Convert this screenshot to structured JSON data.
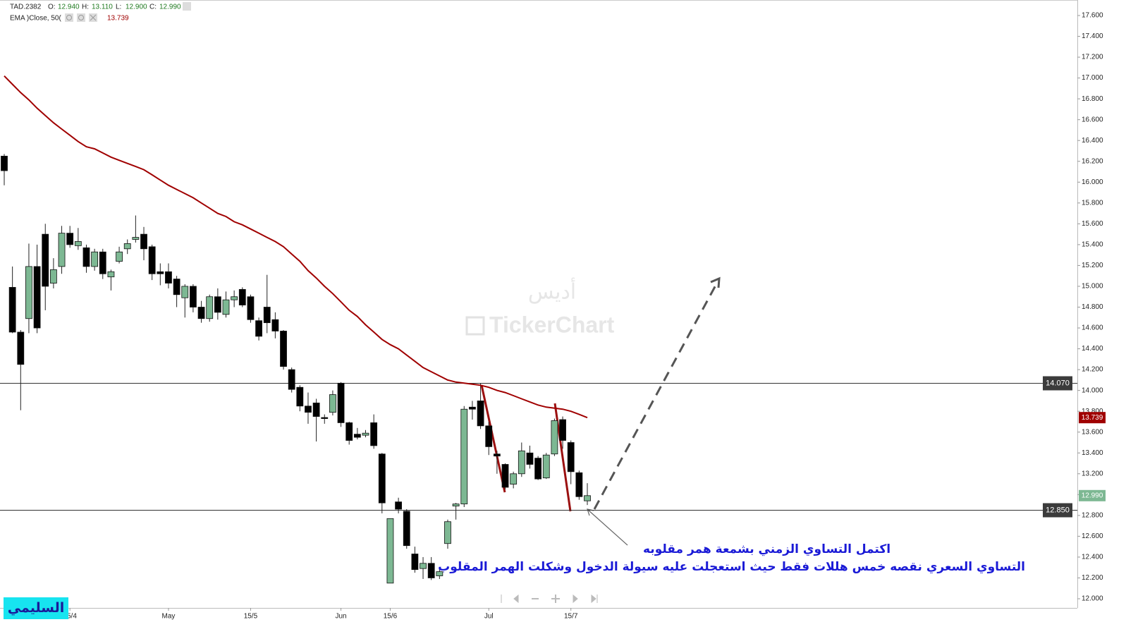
{
  "chart_data": {
    "type": "candlestick",
    "symbol": "TAD.2382",
    "legend_line": [
      {
        "key": "O:",
        "value": "12.940"
      },
      {
        "key": "H:",
        "value": "13.110"
      },
      {
        "key": "L:",
        "value": "12.900"
      },
      {
        "key": "C:",
        "value": "12.990"
      }
    ],
    "categories": [
      null,
      null,
      null,
      null,
      null,
      null,
      null,
      null,
      "15/4",
      null,
      null,
      null,
      null,
      null,
      null,
      null,
      null,
      null,
      null,
      null,
      "May",
      null,
      null,
      null,
      null,
      null,
      null,
      null,
      null,
      null,
      "15/5",
      null,
      null,
      null,
      null,
      null,
      null,
      null,
      null,
      null,
      null,
      "Jun",
      null,
      null,
      null,
      null,
      null,
      "15/6",
      null,
      null,
      null,
      null,
      null,
      null,
      null,
      null,
      null,
      null,
      null,
      "Jul",
      null,
      null,
      null,
      null,
      null,
      null,
      null,
      null,
      null,
      "15/7",
      null,
      null
    ],
    "open": [
      16.25,
      14.99,
      14.56,
      14.69,
      15.19,
      15.5,
      15.03,
      15.19,
      15.51,
      15.39,
      15.37,
      15.19,
      15.33,
      15.09,
      15.24,
      15.36,
      15.45,
      15.5,
      15.38,
      15.14,
      15.14,
      15.07,
      14.89,
      15.0,
      14.8,
      14.69,
      14.9,
      14.73,
      14.87,
      14.97,
      14.9,
      14.67,
      14.8,
      14.68,
      14.57,
      14.2,
      14.03,
      13.85,
      13.88,
      13.74,
      13.79,
      14.07,
      13.69,
      13.58,
      13.57,
      13.69,
      13.39,
      12.15,
      12.93,
      12.84,
      12.43,
      12.29,
      12.34,
      12.22,
      12.53,
      12.89,
      12.91,
      13.84,
      13.9,
      13.66,
      13.39,
      13.29,
      13.1,
      13.2,
      13.4,
      13.35,
      13.16,
      13.39,
      13.72,
      13.5,
      13.21,
      12.94
    ],
    "high": [
      16.27,
      15.19,
      14.58,
      15.41,
      15.4,
      15.6,
      15.27,
      15.58,
      15.58,
      15.56,
      15.4,
      15.36,
      15.36,
      15.16,
      15.38,
      15.45,
      15.68,
      15.57,
      15.4,
      15.22,
      15.22,
      15.1,
      15.02,
      15.02,
      14.86,
      14.92,
      14.98,
      14.95,
      14.96,
      14.99,
      14.92,
      14.7,
      15.11,
      14.75,
      14.58,
      14.22,
      14.05,
      13.98,
      13.92,
      13.77,
      14.0,
      14.08,
      13.7,
      13.64,
      13.62,
      13.77,
      13.4,
      12.77,
      12.97,
      12.86,
      12.5,
      12.4,
      12.4,
      12.3,
      12.76,
      12.92,
      13.85,
      13.9,
      14.07,
      13.7,
      13.42,
      13.3,
      13.22,
      13.5,
      13.47,
      13.37,
      13.4,
      13.73,
      13.75,
      13.52,
      13.23,
      13.11
    ],
    "low": [
      15.97,
      14.55,
      13.81,
      14.55,
      14.55,
      14.77,
      14.98,
      15.12,
      15.37,
      15.35,
      15.13,
      15.15,
      15.07,
      14.96,
      15.22,
      15.31,
      15.42,
      15.25,
      15.06,
      15.01,
      14.98,
      14.8,
      14.7,
      14.75,
      14.65,
      14.66,
      14.68,
      14.7,
      14.8,
      14.8,
      14.65,
      14.48,
      14.55,
      14.5,
      14.2,
      13.98,
      13.8,
      13.68,
      13.51,
      13.68,
      13.76,
      13.65,
      13.48,
      13.53,
      13.55,
      13.44,
      12.82,
      12.15,
      12.82,
      12.48,
      12.25,
      12.19,
      12.18,
      12.19,
      12.48,
      12.76,
      12.88,
      13.72,
      13.63,
      13.38,
      13.2,
      13.05,
      13.06,
      13.17,
      13.25,
      13.14,
      13.15,
      13.37,
      13.44,
      13.1,
      12.95,
      12.9
    ],
    "close": [
      16.11,
      14.56,
      14.25,
      15.19,
      14.6,
      15.0,
      15.16,
      15.51,
      15.4,
      15.43,
      15.19,
      15.33,
      15.12,
      15.14,
      15.33,
      15.41,
      15.47,
      15.36,
      15.12,
      15.12,
      15.03,
      14.92,
      15.0,
      14.8,
      14.69,
      14.9,
      14.75,
      14.87,
      14.9,
      14.82,
      14.68,
      14.52,
      14.65,
      14.57,
      14.23,
      14.01,
      13.85,
      13.79,
      13.75,
      13.73,
      13.96,
      13.69,
      13.52,
      13.55,
      13.59,
      13.47,
      12.92,
      12.77,
      12.86,
      12.51,
      12.28,
      12.34,
      12.2,
      12.26,
      12.74,
      12.91,
      13.82,
      13.82,
      13.66,
      13.46,
      13.37,
      13.07,
      13.2,
      13.42,
      13.29,
      13.15,
      13.38,
      13.71,
      13.52,
      13.22,
      12.98,
      12.99
    ],
    "up_color": "#7db893",
    "down_color": "#000000",
    "ema": {
      "name": "EMA  )Close, 50(",
      "color": "#a00000",
      "last_label": "13.739",
      "values": [
        17.02,
        16.94,
        16.86,
        16.79,
        16.71,
        16.64,
        16.57,
        16.51,
        16.45,
        16.39,
        16.34,
        16.32,
        16.28,
        16.24,
        16.21,
        16.18,
        16.15,
        16.12,
        16.07,
        16.02,
        15.97,
        15.93,
        15.89,
        15.85,
        15.8,
        15.75,
        15.7,
        15.67,
        15.62,
        15.59,
        15.55,
        15.51,
        15.47,
        15.43,
        15.38,
        15.31,
        15.24,
        15.15,
        15.08,
        15.0,
        14.93,
        14.85,
        14.77,
        14.71,
        14.63,
        14.56,
        14.49,
        14.44,
        14.4,
        14.34,
        14.28,
        14.22,
        14.18,
        14.14,
        14.1,
        14.08,
        14.07,
        14.06,
        14.05,
        14.03,
        14.0,
        13.98,
        13.95,
        13.92,
        13.89,
        13.86,
        13.84,
        13.83,
        13.82,
        13.8,
        13.77,
        13.739
      ]
    },
    "last_price": {
      "value": 12.99,
      "label": "12.990"
    },
    "levels": [
      {
        "value": 14.07,
        "label": "14.070"
      },
      {
        "value": 12.85,
        "label": "12.850"
      }
    ],
    "ylim": [
      12.0,
      17.6
    ],
    "yticks": [
      {
        "value": 12.0,
        "label": "12.000"
      },
      {
        "value": 12.2,
        "label": "12.200"
      },
      {
        "value": 12.4,
        "label": "12.400"
      },
      {
        "value": 12.6,
        "label": "12.600"
      },
      {
        "value": 12.8,
        "label": "12.800"
      },
      {
        "value": 13.0,
        "label": "13.000"
      },
      {
        "value": 13.2,
        "label": "13.200"
      },
      {
        "value": 13.4,
        "label": "13.400"
      },
      {
        "value": 13.6,
        "label": "13.600"
      },
      {
        "value": 13.8,
        "label": "13.800"
      },
      {
        "value": 14.0,
        "label": "14.000"
      },
      {
        "value": 14.2,
        "label": "14.200"
      },
      {
        "value": 14.4,
        "label": "14.400"
      },
      {
        "value": 14.6,
        "label": "14.600"
      },
      {
        "value": 14.8,
        "label": "14.800"
      },
      {
        "value": 15.0,
        "label": "15.000"
      },
      {
        "value": 15.2,
        "label": "15.200"
      },
      {
        "value": 15.4,
        "label": "15.400"
      },
      {
        "value": 15.6,
        "label": "15.600"
      },
      {
        "value": 15.8,
        "label": "15.800"
      },
      {
        "value": 16.0,
        "label": "16.000"
      },
      {
        "value": 16.2,
        "label": "16.200"
      },
      {
        "value": 16.4,
        "label": "16.400"
      },
      {
        "value": 16.6,
        "label": "16.600"
      },
      {
        "value": 16.8,
        "label": "16.800"
      },
      {
        "value": 17.0,
        "label": "17.000"
      },
      {
        "value": 17.2,
        "label": "17.200"
      },
      {
        "value": 17.4,
        "label": "17.400"
      },
      {
        "value": 17.6,
        "label": "17.600"
      }
    ],
    "annotations": [
      "اكتمل التساوي الزمني بشمعة همر مقلوبه",
      "التساوي السعري نقصه خمس هللات فقط حيث استعجلت عليه سيولة الدخول وشكلت الهمر المقلوب"
    ],
    "watermark": [
      "أديس",
      "TickerChart"
    ],
    "logo": "السليمي"
  }
}
